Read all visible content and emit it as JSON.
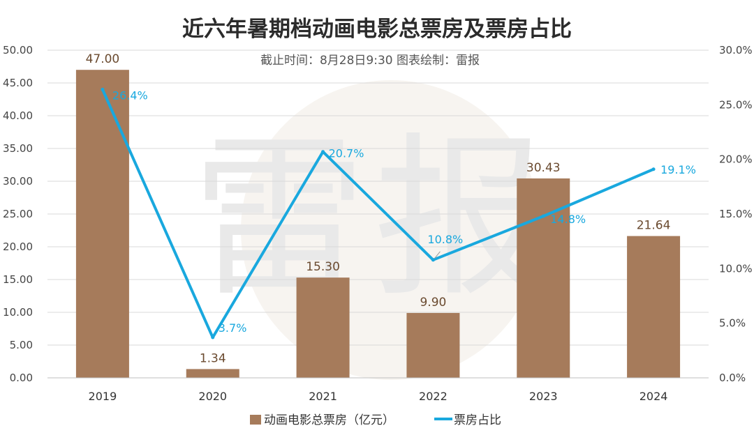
{
  "chart_data": {
    "type": "bar",
    "title": "近六年暑期档动画电影总票房及票房占比",
    "subtitle": "截止时间：8月28日9:30  图表绘制：雷报",
    "watermark": [
      "雷",
      "报"
    ],
    "categories": [
      "2019",
      "2020",
      "2021",
      "2022",
      "2023",
      "2024"
    ],
    "series": [
      {
        "name": "动画电影总票房（亿元）",
        "type": "bar",
        "axis": "left",
        "values": [
          47.0,
          1.34,
          15.3,
          9.9,
          30.43,
          21.64
        ],
        "labels": [
          "47.00",
          "1.34",
          "15.30",
          "9.90",
          "30.43",
          "21.64"
        ],
        "color": "#a67b5b"
      },
      {
        "name": "票房占比",
        "type": "line",
        "axis": "right",
        "values": [
          26.4,
          3.7,
          20.7,
          10.8,
          14.8,
          19.1
        ],
        "labels": [
          "26.4%",
          "3.7%",
          "20.7%",
          "10.8%",
          "14.8%",
          "19.1%"
        ],
        "color": "#19a8de"
      }
    ],
    "y_left": {
      "range": [
        0,
        50
      ],
      "ticks": [
        "0.00",
        "5.00",
        "10.00",
        "15.00",
        "20.00",
        "25.00",
        "30.00",
        "35.00",
        "40.00",
        "45.00",
        "50.00"
      ]
    },
    "y_right": {
      "range": [
        0,
        30
      ],
      "ticks": [
        "0.0%",
        "5.0%",
        "10.0%",
        "15.0%",
        "20.0%",
        "25.0%",
        "30.0%"
      ]
    },
    "grid": true,
    "legend_position": "bottom"
  }
}
